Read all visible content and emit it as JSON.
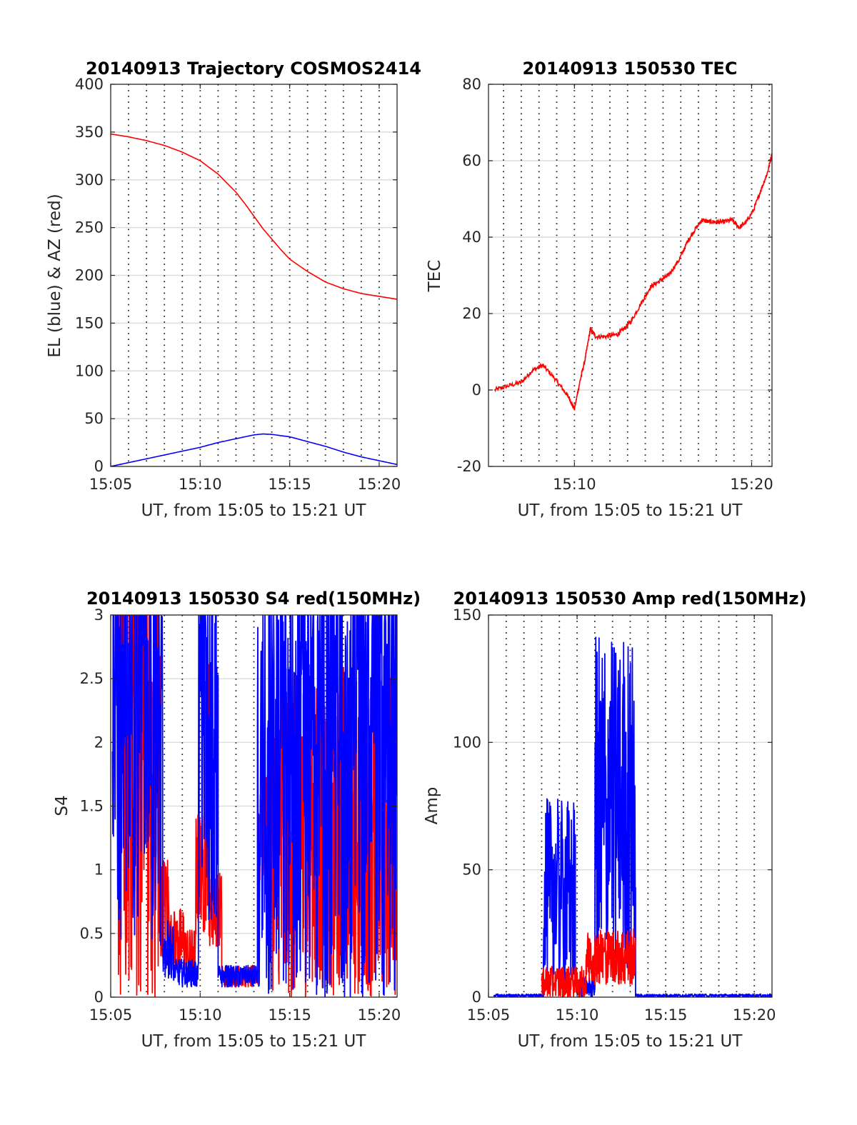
{
  "chart_data": [
    {
      "type": "line",
      "title": "20140913 Trajectory COSMOS2414",
      "xlabel": "UT, from 15:05 to 15:21 UT",
      "ylabel": "EL (blue) & AZ (red)",
      "x_unit": "minutes of hour 15 (UT)",
      "xlim": [
        5,
        21
      ],
      "xticks": [
        5,
        10,
        15,
        20
      ],
      "xtick_labels": [
        "15:05",
        "15:10",
        "15:15",
        "15:20"
      ],
      "ylim": [
        0,
        400
      ],
      "yticks": [
        0,
        50,
        100,
        150,
        200,
        250,
        300,
        350,
        400
      ],
      "ytick_labels": [
        "0",
        "50",
        "100",
        "150",
        "200",
        "250",
        "300",
        "350",
        "400"
      ],
      "grid": {
        "horizontal": "solid light gray",
        "vertical": "dotted",
        "x_spacing_minutes": 1
      },
      "series": [
        {
          "color": "#ff0000",
          "x": [
            5.0,
            6.0,
            7.0,
            8.0,
            9.0,
            10.0,
            11.0,
            12.0,
            12.5,
            13.0,
            13.5,
            14.0,
            14.5,
            15.0,
            16.0,
            17.0,
            18.0,
            19.0,
            20.0,
            21.0
          ],
          "y": [
            348,
            345,
            341,
            336,
            329,
            320,
            306,
            287,
            275,
            262,
            249,
            238,
            227,
            217,
            204,
            193,
            186,
            181,
            178,
            175
          ]
        },
        {
          "color": "#0000ff",
          "x": [
            5.0,
            6.0,
            7.0,
            8.0,
            9.0,
            10.0,
            11.0,
            12.0,
            13.0,
            13.5,
            14.0,
            15.0,
            16.0,
            17.0,
            18.0,
            19.0,
            20.0,
            21.0
          ],
          "y": [
            0,
            4,
            8,
            12,
            16,
            20,
            25,
            29,
            33,
            34,
            33.5,
            31,
            26,
            21,
            15,
            10,
            6,
            2
          ]
        }
      ]
    },
    {
      "type": "line",
      "title": "20140913 150530 TEC",
      "xlabel": "UT, from 15:05 to 15:21 UT",
      "ylabel": "TEC",
      "x_unit": "minutes of hour 15 (UT)",
      "xlim": [
        5.15,
        21.15
      ],
      "xticks": [
        10,
        20
      ],
      "xtick_labels": [
        "15:10",
        "15:20"
      ],
      "ylim": [
        -20,
        80
      ],
      "yticks": [
        -20,
        0,
        20,
        40,
        60,
        80
      ],
      "ytick_labels": [
        "-20",
        "0",
        "20",
        "40",
        "60",
        "80"
      ],
      "grid": {
        "horizontal": "solid light gray",
        "vertical": "dotted",
        "x_spacing_minutes": 1
      },
      "series": [
        {
          "color": "#ff0000",
          "noise": 0.6,
          "x": [
            5.5,
            6.2,
            7.0,
            7.6,
            8.2,
            8.8,
            9.3,
            9.7,
            10.0,
            10.3,
            10.6,
            10.9,
            11.2,
            11.8,
            12.4,
            12.8,
            13.2,
            13.8,
            14.3,
            14.8,
            15.3,
            15.9,
            16.4,
            16.8,
            17.2,
            17.6,
            18.0,
            18.4,
            18.9,
            19.3,
            19.7,
            20.1,
            20.5,
            20.9,
            21.15
          ],
          "y": [
            0,
            1,
            2,
            5,
            6.5,
            3.5,
            0.5,
            -2,
            -5,
            2,
            8,
            16,
            14,
            14,
            14.5,
            16,
            18,
            23,
            27,
            28.5,
            30,
            34,
            39,
            42,
            44.5,
            44,
            44,
            44,
            44.5,
            42.5,
            44,
            47,
            52,
            57,
            62
          ]
        }
      ]
    },
    {
      "type": "line",
      "title": "20140913 150530 S4 red(150MHz)",
      "xlabel": "UT, from 15:05 to 15:21 UT",
      "ylabel": "S4",
      "x_unit": "minutes of hour 15 (UT)",
      "xlim": [
        5,
        21
      ],
      "xticks": [
        5,
        10,
        15,
        20
      ],
      "xtick_labels": [
        "15:05",
        "15:10",
        "15:15",
        "15:20"
      ],
      "ylim": [
        0,
        3
      ],
      "yticks": [
        0,
        0.5,
        1,
        1.5,
        2,
        2.5,
        3
      ],
      "ytick_labels": [
        "0",
        "0.5",
        "1",
        "1.5",
        "2",
        "2.5",
        "3"
      ],
      "grid": {
        "horizontal": "solid light gray",
        "vertical": "dotted",
        "x_spacing_minutes": 1
      },
      "series": [
        {
          "color": "#ff0000",
          "segments": [
            {
              "x0": 5.4,
              "x1": 7.8,
              "lo": 0,
              "hi": 3,
              "clip": 3
            },
            {
              "x0": 7.8,
              "x1": 8.3,
              "lo": 0.3,
              "hi": 1.15
            },
            {
              "x0": 8.3,
              "x1": 9.2,
              "lo": 0.2,
              "hi": 0.7
            },
            {
              "x0": 9.2,
              "x1": 9.75,
              "lo": 0.15,
              "hi": 0.55
            },
            {
              "x0": 9.75,
              "x1": 10.25,
              "lo": 0.5,
              "hi": 1.45
            },
            {
              "x0": 10.25,
              "x1": 10.5,
              "lo": 0.6,
              "hi": 2.8
            },
            {
              "x0": 10.5,
              "x1": 11.2,
              "lo": 0.4,
              "hi": 1.0
            },
            {
              "x0": 11.2,
              "x1": 13.3,
              "lo": 0.08,
              "hi": 0.25
            },
            {
              "x0": 13.3,
              "x1": 14.0,
              "lo": 0.9,
              "hi": 1.8
            },
            {
              "x0": 14.0,
              "x1": 21.0,
              "lo": 0,
              "hi": 2.6
            }
          ]
        },
        {
          "color": "#0000ff",
          "segments": [
            {
              "x0": 5.1,
              "x1": 7.9,
              "lo": 0.4,
              "hi": 3,
              "clip": 3
            },
            {
              "x0": 7.9,
              "x1": 8.5,
              "lo": 0.15,
              "hi": 0.6
            },
            {
              "x0": 8.5,
              "x1": 9.9,
              "lo": 0.08,
              "hi": 0.3
            },
            {
              "x0": 9.9,
              "x1": 11.0,
              "lo": 0.6,
              "hi": 3,
              "clip": 3
            },
            {
              "x0": 11.0,
              "x1": 13.2,
              "lo": 0.08,
              "hi": 0.25
            },
            {
              "x0": 13.2,
              "x1": 21.0,
              "lo": 0,
              "hi": 3,
              "clip": 3
            }
          ]
        }
      ]
    },
    {
      "type": "line",
      "title": "20140913 150530 Amp red(150MHz)",
      "xlabel": "UT, from 15:05 to 15:21 UT",
      "ylabel": "Amp",
      "x_unit": "minutes of hour 15 (UT)",
      "xlim": [
        5,
        21
      ],
      "xticks": [
        5,
        10,
        15,
        20
      ],
      "xtick_labels": [
        "15:05",
        "15:10",
        "15:15",
        "15:20"
      ],
      "ylim": [
        0,
        150
      ],
      "yticks": [
        0,
        50,
        100,
        150
      ],
      "ytick_labels": [
        "0",
        "50",
        "100",
        "150"
      ],
      "grid": {
        "horizontal": "solid light gray",
        "vertical": "dotted",
        "x_spacing_minutes": 1
      },
      "series": [
        {
          "color": "#0000ff",
          "segments": [
            {
              "x0": 5.3,
              "x1": 8.1,
              "lo": 0,
              "hi": 1.2
            },
            {
              "x0": 8.1,
              "x1": 9.9,
              "lo": 5,
              "hi": 78
            },
            {
              "x0": 9.9,
              "x1": 11.0,
              "lo": 0,
              "hi": 8
            },
            {
              "x0": 11.0,
              "x1": 13.3,
              "lo": 10,
              "hi": 143
            },
            {
              "x0": 13.3,
              "x1": 21.0,
              "lo": 0,
              "hi": 1.2
            }
          ]
        },
        {
          "color": "#ff0000",
          "segments": [
            {
              "x0": 8.0,
              "x1": 10.5,
              "lo": 0,
              "hi": 12
            },
            {
              "x0": 10.5,
              "x1": 13.3,
              "lo": 5,
              "hi": 27
            }
          ]
        }
      ]
    }
  ]
}
